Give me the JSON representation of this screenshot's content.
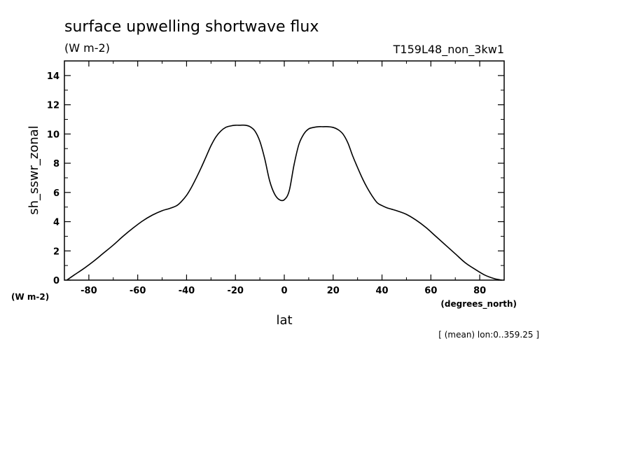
{
  "chart_data": {
    "type": "line",
    "title": "surface upwelling shortwave flux",
    "subtitle_units": "(W m-2)",
    "run_label": "T159L48_non_3kw1",
    "ylabel": "sh_sswr_zonal",
    "y_units": "(W m-2)",
    "xlabel": "lat",
    "x_units": "(degrees_north)",
    "footnote": "[ (mean) lon:0..359.25 ]",
    "xlim": [
      -90,
      90
    ],
    "ylim": [
      0,
      15
    ],
    "x_ticks": [
      -80,
      -60,
      -40,
      -20,
      0,
      20,
      40,
      60,
      80
    ],
    "x_tick_labels": [
      "-80",
      "-60",
      "-40",
      "-20",
      "0",
      "20",
      "40",
      "60",
      "80"
    ],
    "y_ticks": [
      0,
      2,
      4,
      6,
      8,
      10,
      12,
      14
    ],
    "y_tick_labels": [
      "0",
      "2",
      "4",
      "6",
      "8",
      "10",
      "12",
      "14"
    ],
    "grid": false,
    "line_color": "#000000",
    "series": [
      {
        "x": [
          -89,
          -86,
          -82,
          -78,
          -74,
          -70,
          -66,
          -62,
          -58,
          -54,
          -50,
          -47,
          -44,
          -42,
          -40,
          -38,
          -36,
          -34,
          -32,
          -30,
          -28,
          -26,
          -24,
          -22,
          -20,
          -18,
          -16,
          -14,
          -12,
          -10,
          -8,
          -6,
          -4,
          -2,
          0,
          2,
          4,
          6,
          8,
          10,
          12,
          14,
          16,
          18,
          20,
          22,
          24,
          26,
          28,
          30,
          32,
          34,
          36,
          38,
          40,
          42,
          44,
          46,
          50,
          54,
          58,
          62,
          66,
          70,
          74,
          78,
          82,
          86,
          89
        ],
        "values": [
          0.0,
          0.35,
          0.8,
          1.3,
          1.85,
          2.4,
          3.0,
          3.55,
          4.05,
          4.45,
          4.75,
          4.9,
          5.1,
          5.4,
          5.8,
          6.35,
          7.0,
          7.7,
          8.45,
          9.2,
          9.8,
          10.2,
          10.45,
          10.55,
          10.6,
          10.6,
          10.6,
          10.5,
          10.2,
          9.5,
          8.3,
          6.8,
          5.9,
          5.5,
          5.5,
          6.1,
          7.9,
          9.3,
          10.0,
          10.35,
          10.45,
          10.5,
          10.5,
          10.5,
          10.45,
          10.3,
          10.0,
          9.4,
          8.5,
          7.7,
          6.95,
          6.3,
          5.75,
          5.3,
          5.1,
          4.95,
          4.85,
          4.75,
          4.5,
          4.1,
          3.6,
          3.0,
          2.4,
          1.8,
          1.2,
          0.75,
          0.35,
          0.1,
          0.0
        ]
      }
    ]
  }
}
